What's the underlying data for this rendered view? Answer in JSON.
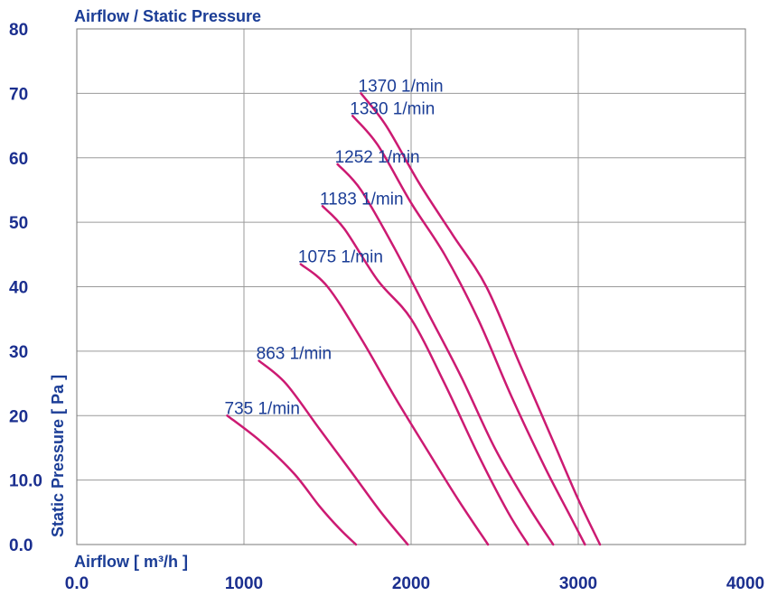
{
  "chart_data": {
    "type": "line",
    "title": "Airflow / Static Pressure",
    "xlabel": "Airflow [ m³/h ]",
    "ylabel": "Static Pressure [ Pa ]",
    "xlim": [
      0,
      4000
    ],
    "ylim": [
      0,
      80
    ],
    "x_ticks": [
      "0.0",
      "1000",
      "2000",
      "3000",
      "4000"
    ],
    "y_ticks": [
      "0.0",
      "10.0",
      "20",
      "30",
      "40",
      "50",
      "60",
      "70",
      "80"
    ],
    "grid": true,
    "curve_color": "#cc1a72",
    "label_color": "#1b3d96",
    "series": [
      {
        "name": "735 1/min",
        "x": [
          900,
          1100,
          1300,
          1450,
          1570,
          1670
        ],
        "y": [
          20,
          16,
          11,
          6,
          2.5,
          0
        ]
      },
      {
        "name": "863 1/min",
        "x": [
          1090,
          1250,
          1450,
          1650,
          1820,
          1980
        ],
        "y": [
          28.5,
          25,
          18,
          11,
          5,
          0
        ]
      },
      {
        "name": "1075 1/min",
        "x": [
          1340,
          1500,
          1700,
          1900,
          2100,
          2280,
          2460
        ],
        "y": [
          43.5,
          40,
          32,
          23,
          14.5,
          7,
          0
        ]
      },
      {
        "name": "1183 1/min",
        "x": [
          1470,
          1600,
          1800,
          2000,
          2200,
          2400,
          2580,
          2700
        ],
        "y": [
          52.5,
          49,
          41,
          35,
          25,
          14,
          5,
          0
        ]
      },
      {
        "name": "1252 1/min",
        "x": [
          1560,
          1700,
          1900,
          2100,
          2300,
          2500,
          2700,
          2850
        ],
        "y": [
          59,
          55,
          46,
          36,
          26,
          15,
          6,
          0
        ]
      },
      {
        "name": "1330 1/min",
        "x": [
          1650,
          1800,
          2000,
          2200,
          2400,
          2600,
          2800,
          2940,
          3040
        ],
        "y": [
          66.5,
          62,
          53,
          45,
          35,
          23,
          12,
          5,
          0
        ]
      },
      {
        "name": "1370 1/min",
        "x": [
          1700,
          1850,
          2050,
          2250,
          2450,
          2650,
          2850,
          3000,
          3130
        ],
        "y": [
          70,
          65,
          56,
          48,
          40,
          28,
          16,
          7,
          0
        ]
      }
    ]
  }
}
